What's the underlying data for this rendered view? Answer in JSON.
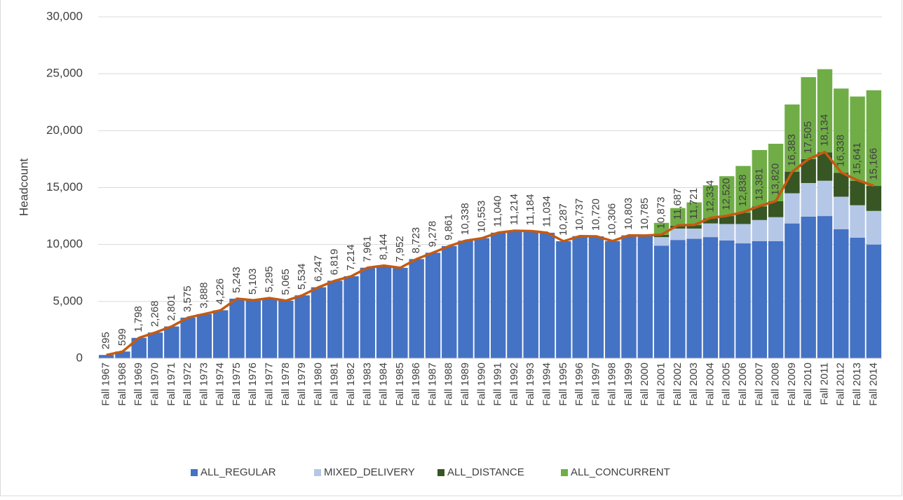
{
  "chart_data": {
    "type": "bar",
    "stacked": true,
    "y_label": "Headcount",
    "categories": [
      "Fall 1967",
      "Fall 1968",
      "Fall 1969",
      "Fall 1970",
      "Fall 1971",
      "Fall 1972",
      "Fall 1973",
      "Fall 1974",
      "Fall 1975",
      "Fall 1976",
      "Fall 1977",
      "Fall 1978",
      "Fall 1979",
      "Fall 1980",
      "Fall 1981",
      "Fall 1982",
      "Fall 1983",
      "Fall 1984",
      "Fall 1985",
      "Fall 1986",
      "Fall 1987",
      "Fall 1988",
      "Fall 1989",
      "Fall 1990",
      "Fall 1991",
      "Fall 1992",
      "Fall 1993",
      "Fall 1994",
      "Fall 1995",
      "Fall 1996",
      "Fall 1997",
      "Fall 1998",
      "Fall 1999",
      "Fall 2000",
      "Fall 2001",
      "Fall 2002",
      "Fall 2003",
      "Fall 2004",
      "Fall 2005",
      "Fall 2006",
      "Fall 2007",
      "Fall 2008",
      "Fall 2009",
      "Fall 2010",
      "Fall 2011",
      "Fall 2012",
      "Fall 2013",
      "Fall 2014"
    ],
    "series": [
      {
        "name": "ALL_REGULAR",
        "color": "#4472c4",
        "values": [
          295,
          599,
          1798,
          2268,
          2801,
          3575,
          3888,
          4226,
          5243,
          5103,
          5295,
          5065,
          5534,
          6247,
          6819,
          7214,
          7961,
          8144,
          7952,
          8723,
          9278,
          9861,
          10338,
          10553,
          11040,
          11214,
          11184,
          11034,
          10287,
          10737,
          10720,
          10306,
          10803,
          10785,
          9900,
          10400,
          10500,
          10650,
          10350,
          10100,
          10300,
          10300,
          11850,
          12450,
          12500,
          11350,
          10600,
          10000
        ]
      },
      {
        "name": "MIXED_DELIVERY",
        "color": "#b4c7e7",
        "values": [
          0,
          0,
          0,
          0,
          0,
          0,
          0,
          0,
          0,
          0,
          0,
          0,
          0,
          0,
          0,
          0,
          0,
          0,
          0,
          0,
          0,
          0,
          0,
          0,
          0,
          0,
          0,
          0,
          0,
          0,
          0,
          0,
          0,
          0,
          750,
          1000,
          900,
          1200,
          1450,
          1700,
          1850,
          2100,
          2650,
          2950,
          3100,
          2850,
          2850,
          2950
        ]
      },
      {
        "name": "ALL_DISTANCE",
        "color": "#375623",
        "values": [
          0,
          0,
          0,
          0,
          0,
          0,
          0,
          0,
          0,
          0,
          0,
          0,
          0,
          0,
          0,
          0,
          0,
          0,
          0,
          0,
          0,
          0,
          0,
          0,
          0,
          0,
          0,
          0,
          0,
          0,
          0,
          0,
          0,
          0,
          200,
          250,
          300,
          450,
          700,
          1000,
          1200,
          1400,
          1900,
          2100,
          2500,
          2100,
          2150,
          2200
        ]
      },
      {
        "name": "ALL_CONCURRENT",
        "color": "#70ad47",
        "values": [
          0,
          0,
          0,
          0,
          0,
          0,
          0,
          0,
          0,
          0,
          0,
          0,
          0,
          0,
          0,
          0,
          0,
          0,
          0,
          0,
          0,
          0,
          0,
          0,
          0,
          0,
          0,
          0,
          0,
          0,
          0,
          0,
          0,
          0,
          1050,
          1550,
          2000,
          2900,
          3500,
          4100,
          4950,
          5050,
          5900,
          7200,
          7300,
          7400,
          7400,
          8400
        ]
      }
    ],
    "line": {
      "type": "line",
      "color": "#c55a11",
      "values": [
        295,
        599,
        1798,
        2268,
        2801,
        3575,
        3888,
        4226,
        5243,
        5103,
        5295,
        5065,
        5534,
        6247,
        6819,
        7214,
        7961,
        8144,
        7952,
        8723,
        9278,
        9861,
        10338,
        10553,
        11040,
        11214,
        11184,
        11034,
        10287,
        10737,
        10720,
        10306,
        10803,
        10785,
        10873,
        11687,
        11721,
        12334,
        12520,
        12838,
        13381,
        13820,
        16383,
        17505,
        18134,
        16338,
        15641,
        15166
      ],
      "value_labels": [
        "295",
        "599",
        "1,798",
        "2,268",
        "2,801",
        "3,575",
        "3,888",
        "4,226",
        "5,243",
        "5,103",
        "5,295",
        "5,065",
        "5,534",
        "6,247",
        "6,819",
        "7,214",
        "7,961",
        "8,144",
        "7,952",
        "8,723",
        "9,278",
        "9,861",
        "10,338",
        "10,553",
        "11,040",
        "11,214",
        "11,184",
        "11,034",
        "10,287",
        "10,737",
        "10,720",
        "10,306",
        "10,803",
        "10,785",
        "10,873",
        "11,687",
        "11,721",
        "12,334",
        "12,520",
        "12,838",
        "13,381",
        "13,820",
        "16,383",
        "17,505",
        "18,134",
        "16,338",
        "15,641",
        "15,166"
      ]
    },
    "ylim": [
      0,
      30000
    ],
    "yticks": [
      0,
      {
        "value": 5000,
        "label": "5,000"
      },
      {
        "value": 10000,
        "label": "10,000"
      },
      {
        "value": 15000,
        "label": "15,000"
      },
      {
        "value": 20000,
        "label": "20,000"
      },
      {
        "value": 25000,
        "label": "25,000"
      },
      {
        "value": 30000,
        "label": "30,000"
      }
    ],
    "grid": true,
    "legend": "bottom"
  }
}
